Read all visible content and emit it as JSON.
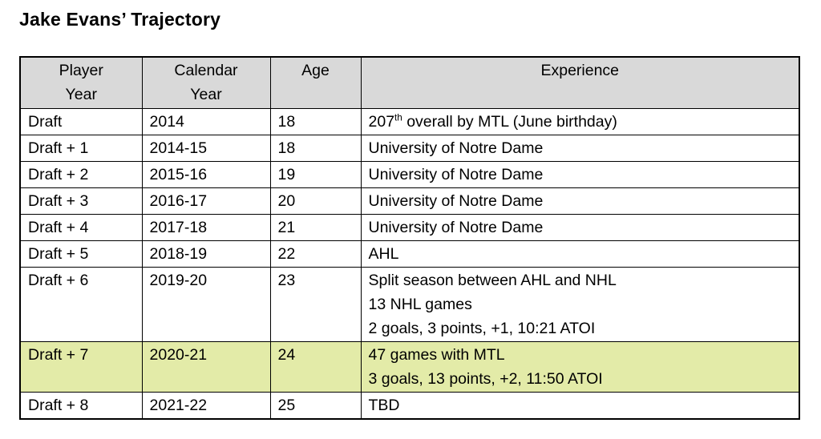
{
  "title": "Jake Evans’ Trajectory",
  "table": {
    "headers": [
      "Player\nYear",
      "Calendar\nYear",
      "Age",
      "Experience"
    ],
    "highlight_color": "#e3eba8",
    "header_color": "#d9d9d9",
    "rows": [
      {
        "player_year": "Draft",
        "calendar_year": "2014",
        "age": "18",
        "experience": [
          [
            {
              "text": "207"
            },
            {
              "text": "th",
              "sup": true
            },
            {
              "text": " overall by MTL (June birthday)"
            }
          ]
        ],
        "highlight": false
      },
      {
        "player_year": "Draft + 1",
        "calendar_year": "2014-15",
        "age": "18",
        "experience": [
          [
            {
              "text": "University of Notre Dame"
            }
          ]
        ],
        "highlight": false
      },
      {
        "player_year": "Draft + 2",
        "calendar_year": "2015-16",
        "age": "19",
        "experience": [
          [
            {
              "text": "University of Notre Dame"
            }
          ]
        ],
        "highlight": false
      },
      {
        "player_year": "Draft + 3",
        "calendar_year": "2016-17",
        "age": "20",
        "experience": [
          [
            {
              "text": "University of Notre Dame"
            }
          ]
        ],
        "highlight": false
      },
      {
        "player_year": "Draft + 4",
        "calendar_year": "2017-18",
        "age": "21",
        "experience": [
          [
            {
              "text": "University of Notre Dame"
            }
          ]
        ],
        "highlight": false
      },
      {
        "player_year": "Draft + 5",
        "calendar_year": "2018-19",
        "age": "22",
        "experience": [
          [
            {
              "text": "AHL"
            }
          ]
        ],
        "highlight": false
      },
      {
        "player_year": "Draft + 6",
        "calendar_year": "2019-20",
        "age": "23",
        "experience": [
          [
            {
              "text": "Split season between AHL and NHL"
            }
          ],
          [
            {
              "text": "13 NHL games"
            }
          ],
          [
            {
              "text": "2 goals, 3 points, +1, 10:21 ATOI"
            }
          ]
        ],
        "highlight": false
      },
      {
        "player_year": "Draft + 7",
        "calendar_year": "2020-21",
        "age": "24",
        "experience": [
          [
            {
              "text": "47 games with MTL"
            }
          ],
          [
            {
              "text": "3 goals, 13 points, +2, 11:50 ATOI"
            }
          ]
        ],
        "highlight": true
      },
      {
        "player_year": "Draft + 8",
        "calendar_year": "2021-22",
        "age": "25",
        "experience": [
          [
            {
              "text": "TBD"
            }
          ]
        ],
        "highlight": false
      }
    ]
  }
}
